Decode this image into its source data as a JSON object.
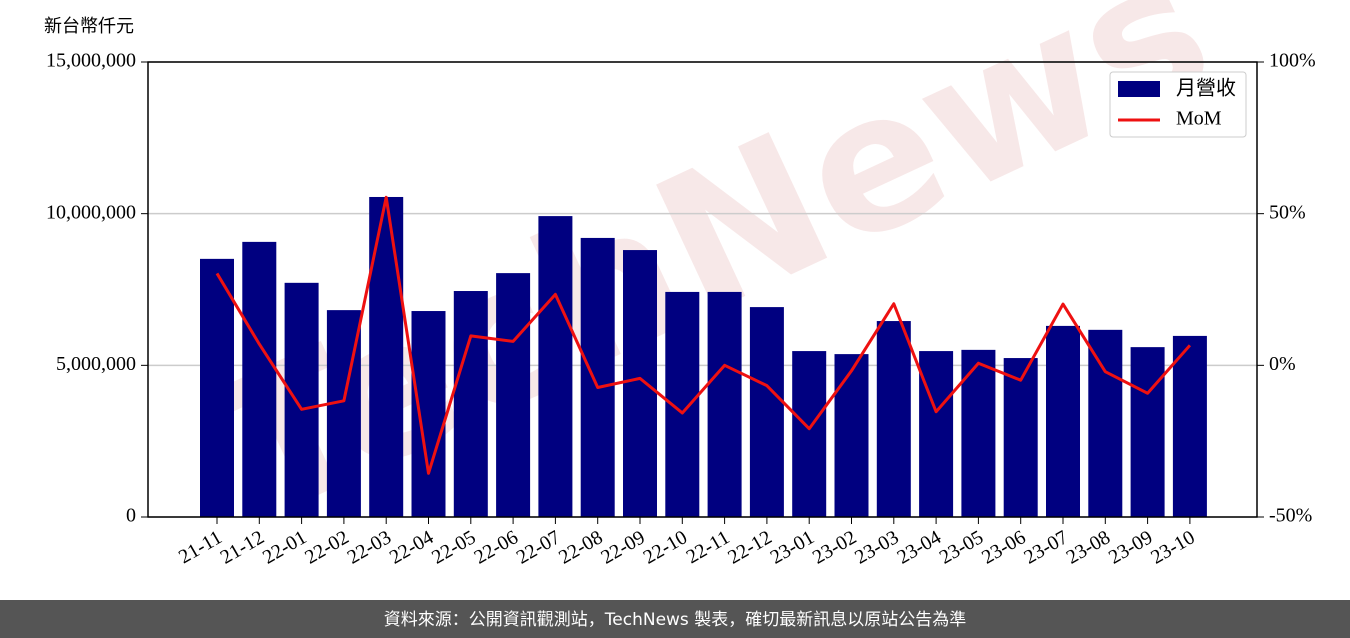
{
  "chart_data": {
    "type": "bar_line",
    "y_label": "新台幣仟元",
    "watermark": "TechNews",
    "footer": "資料來源：公開資訊觀測站，TechNews 製表，確切最新訊息以原站公告為準",
    "categories": [
      "21-11",
      "21-12",
      "22-01",
      "22-02",
      "22-03",
      "22-04",
      "22-05",
      "22-06",
      "22-07",
      "22-08",
      "22-09",
      "22-10",
      "22-11",
      "22-12",
      "23-01",
      "23-02",
      "23-03",
      "23-04",
      "23-05",
      "23-06",
      "23-07",
      "23-08",
      "23-09",
      "23-10"
    ],
    "series": [
      {
        "name": "月營收",
        "type": "bar",
        "color": "#000080",
        "values": [
          8510000,
          9070000,
          7720000,
          6820000,
          10550000,
          6790000,
          7450000,
          8040000,
          9920000,
          9200000,
          8800000,
          7420000,
          7420000,
          6920000,
          5470000,
          5370000,
          6460000,
          5470000,
          5510000,
          5240000,
          6300000,
          6170000,
          5600000,
          5970000
        ]
      },
      {
        "name": "MoM",
        "type": "line",
        "axis": "y2",
        "color": "#ee1111",
        "values": [
          30.3,
          7,
          -14.5,
          -11.7,
          55.4,
          -35.6,
          9.7,
          7.9,
          23.4,
          -7.3,
          -4.3,
          -15.7,
          0,
          -6.7,
          -20.9,
          -1.8,
          20.3,
          -15.3,
          0.7,
          -4.9,
          20.2,
          -2.1,
          -9.2,
          6.6
        ]
      }
    ],
    "ylim": [
      0,
      15000000
    ],
    "yticks": [
      0,
      {
        "value": 5000000,
        "label": "5,000,000"
      },
      {
        "value": 10000000,
        "label": "10,000,000"
      },
      {
        "value": 15000000,
        "label": "15,000,000"
      }
    ],
    "y2lim": [
      -50,
      100
    ],
    "y2ticks": [
      {
        "value": -50,
        "label": "-50%"
      },
      {
        "value": 0,
        "label": "0%"
      },
      {
        "value": 50,
        "label": "50%"
      },
      {
        "value": 100,
        "label": "100%"
      }
    ],
    "grid": true,
    "legend": "upper right"
  }
}
